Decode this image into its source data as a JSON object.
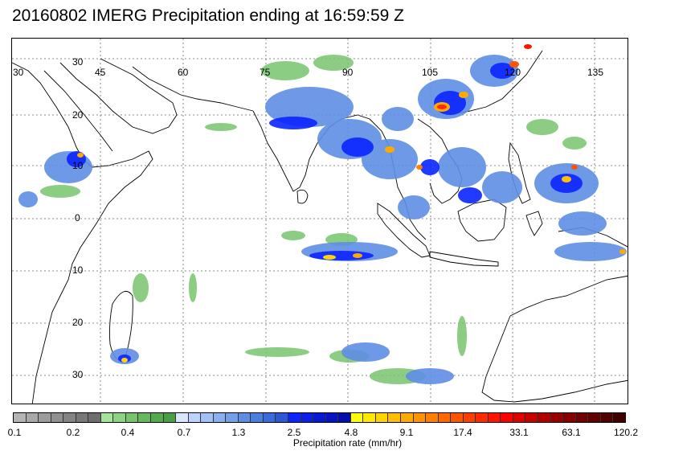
{
  "title": "20160802 IMERG Precipitation ending at 16:59:59 Z",
  "map": {
    "lon_labels": [
      "30",
      "45",
      "60",
      "75",
      "90",
      "105",
      "120",
      "135"
    ],
    "lat_labels": [
      "30",
      "20",
      "10",
      "0",
      "10",
      "20",
      "30"
    ]
  },
  "colorbar": {
    "colors": [
      "#b4b4b4",
      "#a8a8a8",
      "#9c9c9c",
      "#909090",
      "#848484",
      "#787878",
      "#6e6e6e",
      "#a6e39d",
      "#8cd383",
      "#78c46e",
      "#66b75d",
      "#56aa4e",
      "#48a044",
      "#d8e7ff",
      "#bcd3fb",
      "#a3c1f5",
      "#8bb0ef",
      "#74a0ea",
      "#5f8ee4",
      "#4a7edf",
      "#3a6cdb",
      "#2b59d3",
      "#0b25ff",
      "#0a1fe9",
      "#0819d5",
      "#0614c1",
      "#040ead",
      "#ffff00",
      "#ffe900",
      "#ffd400",
      "#ffbf00",
      "#ffaa00",
      "#ff9400",
      "#ff7f00",
      "#ff6900",
      "#ff5400",
      "#ff3f00",
      "#ff2a00",
      "#ff1400",
      "#ff0000",
      "#e00000",
      "#c80000",
      "#b00000",
      "#9a0000",
      "#860000",
      "#720000",
      "#600000",
      "#500000",
      "#400000"
    ],
    "tick_labels": [
      "0.1",
      "0.2",
      "0.4",
      "0.7",
      "1.3",
      "2.5",
      "4.8",
      "9.1",
      "17.4",
      "33.1",
      "63.1",
      "120.2"
    ],
    "caption": "Precipitation rate (mm/hr)"
  }
}
